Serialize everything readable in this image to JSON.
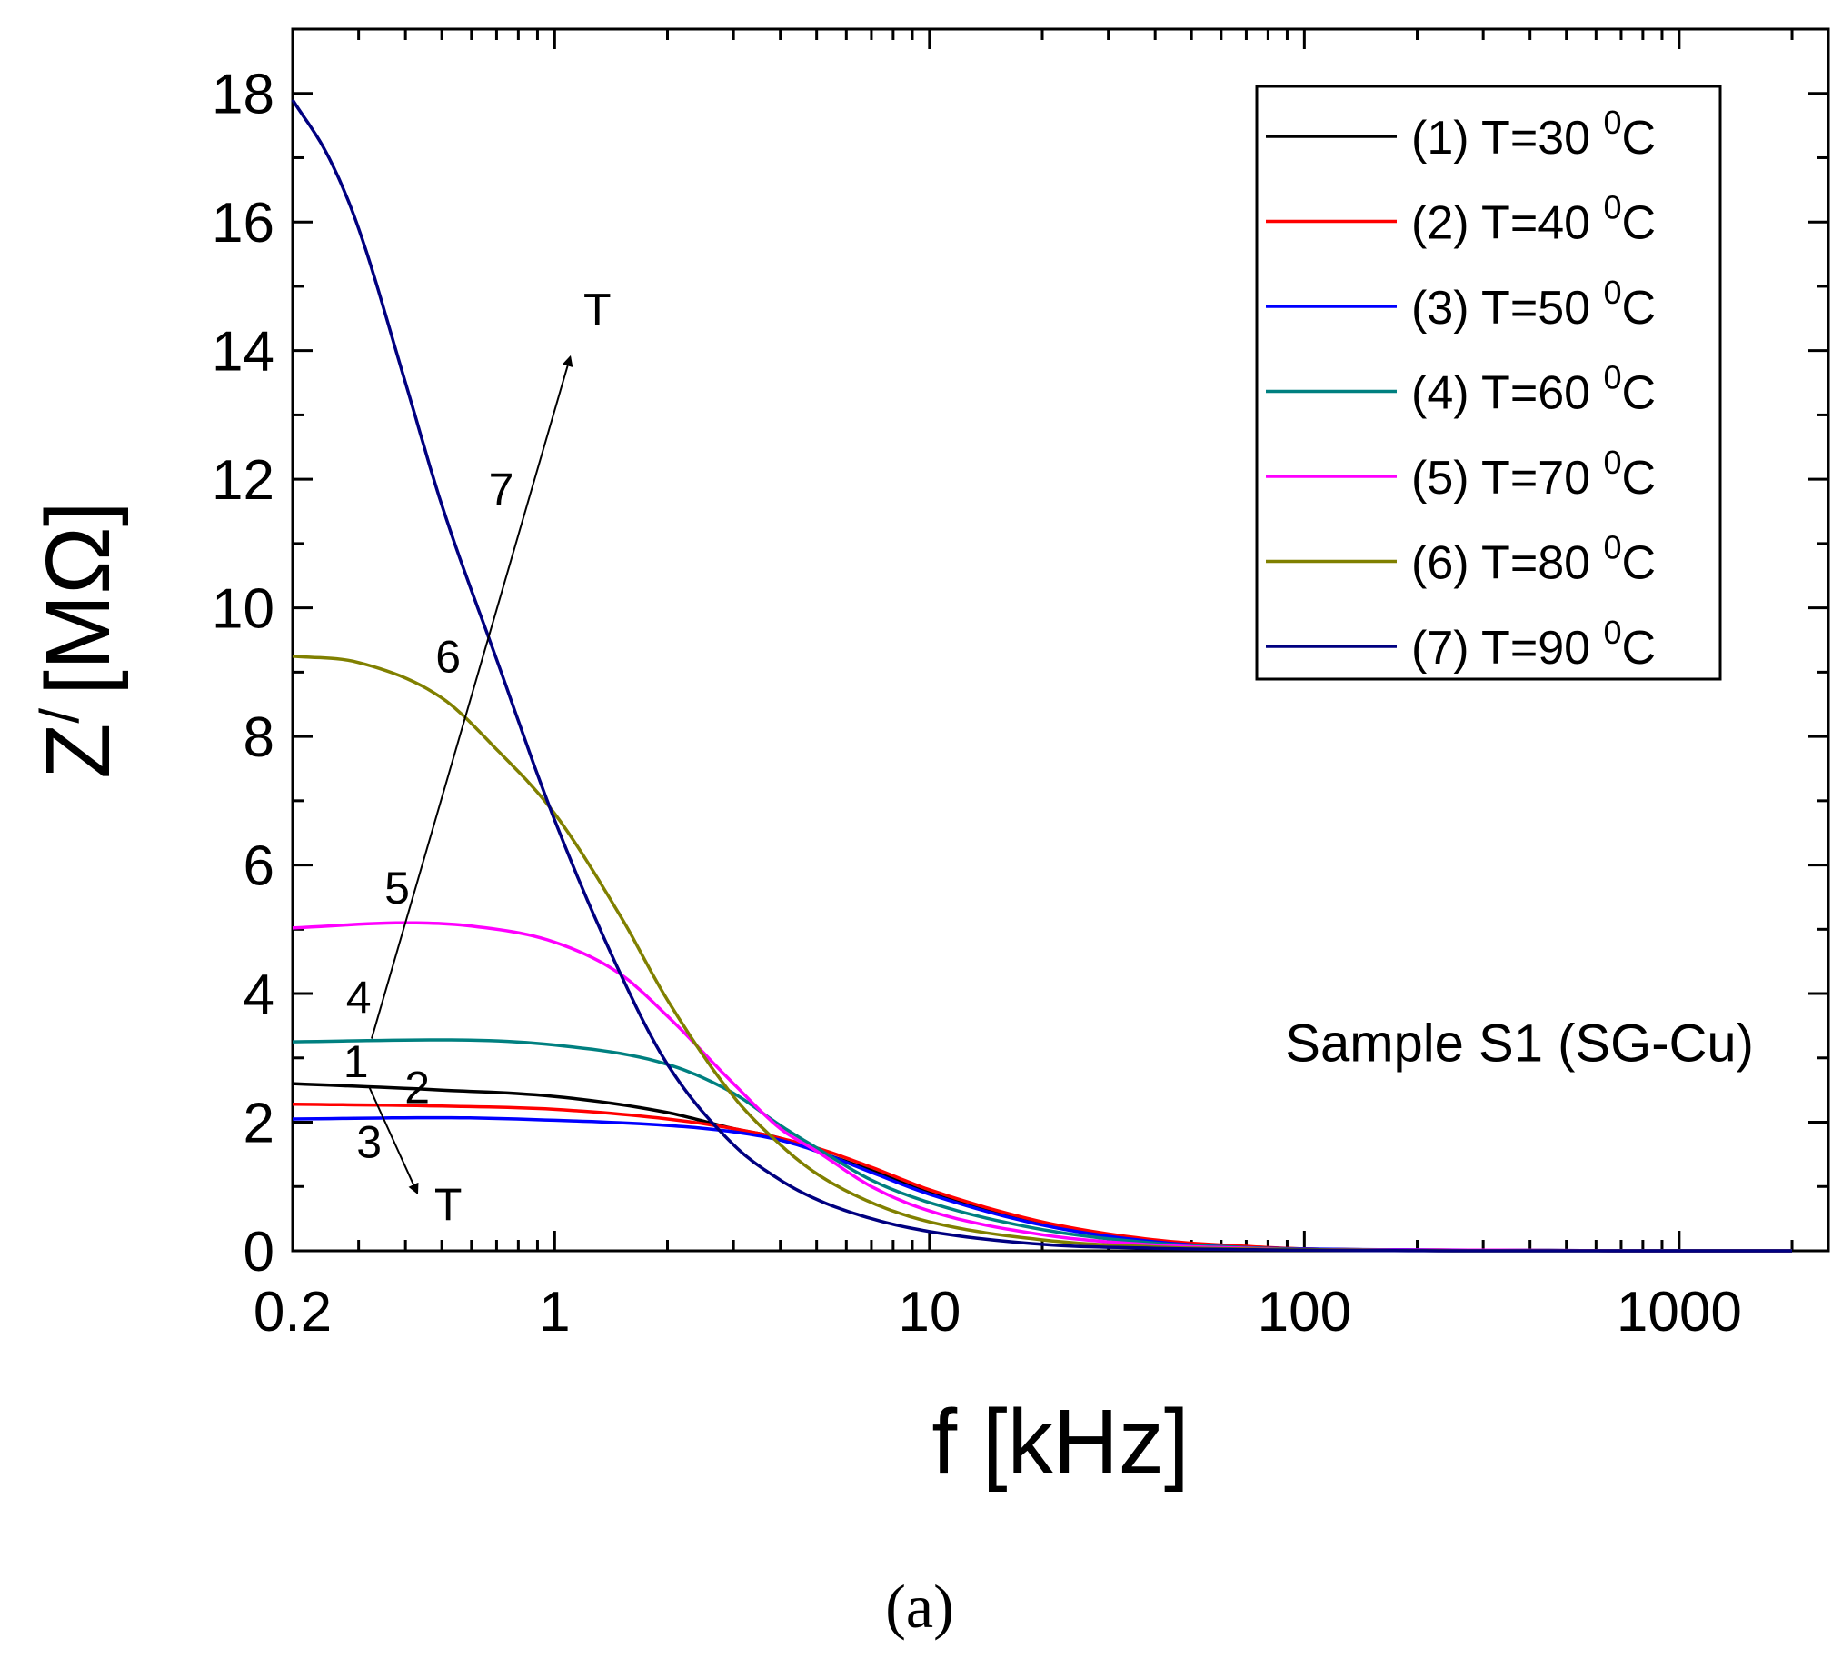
{
  "chart_data": {
    "type": "line",
    "xscale": "log",
    "xlabel": "f [kHz]",
    "ylabel": "Z",
    "ylabel_prime": "/",
    "ylabel_unit": "[MΩ]",
    "xlim": [
      0.2,
      2500
    ],
    "ylim": [
      0,
      19
    ],
    "xticks": [
      {
        "value": 0.2,
        "label": "0.2"
      },
      {
        "value": 1,
        "label": "1"
      },
      {
        "value": 10,
        "label": "10"
      },
      {
        "value": 100,
        "label": "100"
      },
      {
        "value": 1000,
        "label": "1000"
      }
    ],
    "yticks": [
      {
        "value": 0,
        "label": "0"
      },
      {
        "value": 2,
        "label": "2"
      },
      {
        "value": 4,
        "label": "4"
      },
      {
        "value": 6,
        "label": "6"
      },
      {
        "value": 8,
        "label": "8"
      },
      {
        "value": 10,
        "label": "10"
      },
      {
        "value": 12,
        "label": "12"
      },
      {
        "value": 14,
        "label": "14"
      },
      {
        "value": 16,
        "label": "16"
      },
      {
        "value": 18,
        "label": "18"
      }
    ],
    "series": [
      {
        "id": "1",
        "legend_prefix": "(1) T=30",
        "superscript": "0",
        "unit": "C",
        "color": "#000000",
        "points": [
          [
            0.2,
            2.6
          ],
          [
            0.5,
            2.5
          ],
          [
            1,
            2.4
          ],
          [
            2,
            2.15
          ],
          [
            3,
            1.9
          ],
          [
            4,
            1.75
          ],
          [
            5,
            1.55
          ],
          [
            7,
            1.25
          ],
          [
            10,
            0.9
          ],
          [
            20,
            0.42
          ],
          [
            40,
            0.15
          ],
          [
            70,
            0.06
          ],
          [
            100,
            0.03
          ],
          [
            300,
            0.01
          ],
          [
            1000,
            0.0
          ],
          [
            2000,
            0.0
          ]
        ]
      },
      {
        "id": "2",
        "legend_prefix": "(2) T=40",
        "superscript": "0",
        "unit": "C",
        "color": "#ff0000",
        "points": [
          [
            0.2,
            2.28
          ],
          [
            0.5,
            2.25
          ],
          [
            1,
            2.2
          ],
          [
            2,
            2.05
          ],
          [
            3,
            1.9
          ],
          [
            4,
            1.75
          ],
          [
            5,
            1.6
          ],
          [
            7,
            1.3
          ],
          [
            10,
            0.95
          ],
          [
            20,
            0.45
          ],
          [
            40,
            0.17
          ],
          [
            70,
            0.07
          ],
          [
            100,
            0.03
          ],
          [
            300,
            0.01
          ],
          [
            1000,
            0.0
          ],
          [
            2000,
            0.0
          ]
        ]
      },
      {
        "id": "3",
        "legend_prefix": "(3) T=50",
        "superscript": "0",
        "unit": "C",
        "color": "#0000ff",
        "points": [
          [
            0.2,
            2.05
          ],
          [
            0.5,
            2.07
          ],
          [
            1,
            2.03
          ],
          [
            2,
            1.95
          ],
          [
            3,
            1.85
          ],
          [
            4,
            1.72
          ],
          [
            5,
            1.55
          ],
          [
            7,
            1.22
          ],
          [
            10,
            0.88
          ],
          [
            20,
            0.4
          ],
          [
            40,
            0.14
          ],
          [
            70,
            0.05
          ],
          [
            100,
            0.03
          ],
          [
            300,
            0.01
          ],
          [
            1000,
            0.0
          ],
          [
            2000,
            0.0
          ]
        ]
      },
      {
        "id": "4",
        "legend_prefix": "(4) T=60",
        "superscript": "0",
        "unit": "C",
        "color": "#008080",
        "points": [
          [
            0.2,
            3.25
          ],
          [
            0.5,
            3.28
          ],
          [
            1,
            3.2
          ],
          [
            2,
            2.9
          ],
          [
            3,
            2.45
          ],
          [
            4,
            1.95
          ],
          [
            5,
            1.6
          ],
          [
            7,
            1.1
          ],
          [
            10,
            0.75
          ],
          [
            20,
            0.33
          ],
          [
            40,
            0.12
          ],
          [
            70,
            0.05
          ],
          [
            100,
            0.02
          ],
          [
            300,
            0.01
          ],
          [
            1000,
            0.0
          ],
          [
            2000,
            0.0
          ]
        ]
      },
      {
        "id": "5",
        "legend_prefix": "(5) T=70",
        "superscript": "0",
        "unit": "C",
        "color": "#ff00ff",
        "points": [
          [
            0.2,
            5.02
          ],
          [
            0.4,
            5.1
          ],
          [
            0.6,
            5.05
          ],
          [
            1,
            4.8
          ],
          [
            1.5,
            4.3
          ],
          [
            2,
            3.65
          ],
          [
            3,
            2.6
          ],
          [
            4,
            1.9
          ],
          [
            5,
            1.55
          ],
          [
            7,
            1.0
          ],
          [
            10,
            0.62
          ],
          [
            20,
            0.25
          ],
          [
            40,
            0.09
          ],
          [
            70,
            0.04
          ],
          [
            100,
            0.02
          ],
          [
            300,
            0.01
          ],
          [
            1000,
            0.0
          ],
          [
            2000,
            0.0
          ]
        ]
      },
      {
        "id": "6",
        "legend_prefix": "(6) T=80",
        "superscript": "0",
        "unit": "C",
        "color": "#808000",
        "points": [
          [
            0.2,
            9.25
          ],
          [
            0.3,
            9.15
          ],
          [
            0.5,
            8.6
          ],
          [
            0.7,
            7.8
          ],
          [
            1,
            6.8
          ],
          [
            1.5,
            5.2
          ],
          [
            2,
            3.9
          ],
          [
            3,
            2.4
          ],
          [
            4,
            1.65
          ],
          [
            5,
            1.2
          ],
          [
            7,
            0.75
          ],
          [
            10,
            0.45
          ],
          [
            20,
            0.17
          ],
          [
            40,
            0.06
          ],
          [
            100,
            0.02
          ],
          [
            300,
            0.0
          ],
          [
            1000,
            0.0
          ],
          [
            2000,
            0.0
          ]
        ]
      },
      {
        "id": "7",
        "legend_prefix": "(7) T=90",
        "superscript": "0",
        "unit": "C",
        "color": "#000080",
        "points": [
          [
            0.2,
            17.9
          ],
          [
            0.25,
            17.0
          ],
          [
            0.3,
            15.9
          ],
          [
            0.4,
            13.5
          ],
          [
            0.5,
            11.6
          ],
          [
            0.7,
            9.2
          ],
          [
            1,
            6.7
          ],
          [
            1.5,
            4.3
          ],
          [
            2,
            2.9
          ],
          [
            3,
            1.65
          ],
          [
            4,
            1.1
          ],
          [
            5,
            0.8
          ],
          [
            7,
            0.5
          ],
          [
            10,
            0.3
          ],
          [
            20,
            0.1
          ],
          [
            40,
            0.04
          ],
          [
            100,
            0.01
          ],
          [
            300,
            0.0
          ],
          [
            1000,
            0.0
          ],
          [
            2000,
            0.0
          ]
        ]
      }
    ],
    "curve_labels": [
      {
        "text": "1",
        "x": 0.295,
        "y": 2.7
      },
      {
        "text": "2",
        "x": 0.43,
        "y": 2.3
      },
      {
        "text": "3",
        "x": 0.32,
        "y": 1.45
      },
      {
        "text": "4",
        "x": 0.3,
        "y": 3.7
      },
      {
        "text": "5",
        "x": 0.38,
        "y": 5.4
      },
      {
        "text": "6",
        "x": 0.52,
        "y": 9.0
      },
      {
        "text": "7",
        "x": 0.72,
        "y": 11.6
      }
    ],
    "arrows": [
      {
        "from": [
          0.325,
          3.3
        ],
        "to": [
          1.1,
          13.9
        ],
        "label": "T",
        "label_at": [
          1.3,
          14.4
        ]
      },
      {
        "from": [
          0.32,
          2.55
        ],
        "to": [
          0.43,
          0.9
        ],
        "label": "T",
        "label_at": [
          0.52,
          0.48
        ]
      }
    ],
    "annotation": "Sample S1 (SG-Cu)",
    "annotation_at": [
      90,
      2.95
    ],
    "legend_position": "top-right",
    "caption": "(a)"
  }
}
